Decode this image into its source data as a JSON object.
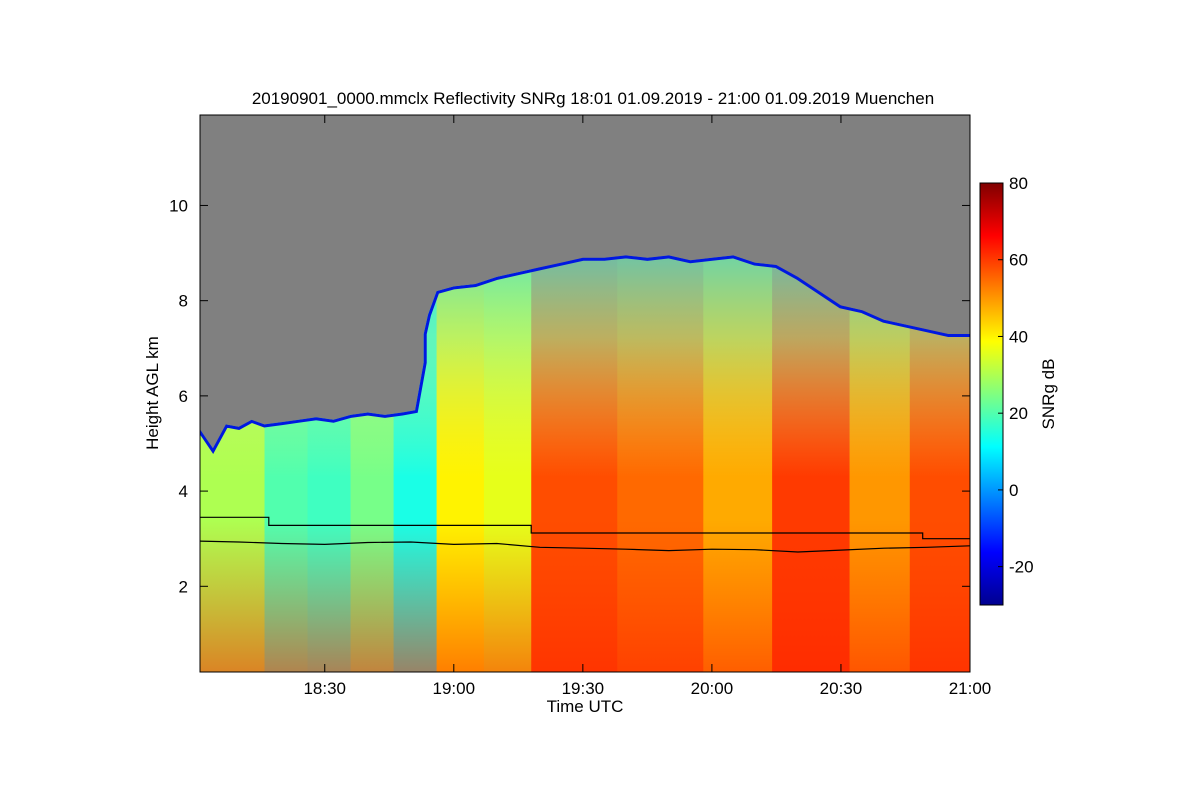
{
  "chart_data": {
    "type": "heatmap",
    "title": "20190901_0000.mmclx Reflectivity SNRg   18:01 01.09.2019 - 21:00 01.09.2019 Muenchen",
    "xlabel": "Time UTC",
    "ylabel": "Height AGL km",
    "x_range_minutes_utc": [
      1081,
      1260
    ],
    "y_range_km": [
      0.2,
      11.9
    ],
    "x_ticks": [
      {
        "minutes": 1110,
        "label": "18:30"
      },
      {
        "minutes": 1140,
        "label": "19:00"
      },
      {
        "minutes": 1170,
        "label": "19:30"
      },
      {
        "minutes": 1200,
        "label": "20:00"
      },
      {
        "minutes": 1230,
        "label": "20:30"
      },
      {
        "minutes": 1260,
        "label": "21:00"
      }
    ],
    "y_ticks": [
      {
        "km": 2,
        "label": "2"
      },
      {
        "km": 4,
        "label": "4"
      },
      {
        "km": 6,
        "label": "6"
      },
      {
        "km": 8,
        "label": "8"
      },
      {
        "km": 10,
        "label": "10"
      }
    ],
    "colorbar": {
      "label": "SNRg dB",
      "range": [
        -30,
        80
      ],
      "ticks": [
        {
          "value": -20,
          "label": "-20"
        },
        {
          "value": 0,
          "label": "0"
        },
        {
          "value": 20,
          "label": "20"
        },
        {
          "value": 40,
          "label": "40"
        },
        {
          "value": 60,
          "label": "60"
        },
        {
          "value": 80,
          "label": "80"
        }
      ],
      "colors": [
        "#00008f",
        "#0000ff",
        "#0080ff",
        "#00ffff",
        "#80ff80",
        "#ffff00",
        "#ff8000",
        "#ff0000",
        "#800000"
      ]
    },
    "no_data_color": "#808080",
    "cloud_top_km": [
      [
        1081,
        5.3
      ],
      [
        1084,
        4.9
      ],
      [
        1087,
        5.4
      ],
      [
        1090,
        5.35
      ],
      [
        1093,
        5.5
      ],
      [
        1096,
        5.4
      ],
      [
        1100,
        5.45
      ],
      [
        1104,
        5.5
      ],
      [
        1108,
        5.55
      ],
      [
        1112,
        5.5
      ],
      [
        1116,
        5.6
      ],
      [
        1120,
        5.65
      ],
      [
        1124,
        5.6
      ],
      [
        1128,
        5.65
      ],
      [
        1131,
        5.7
      ],
      [
        1132,
        6.2
      ],
      [
        1133,
        6.7
      ],
      [
        1133,
        7.3
      ],
      [
        1134,
        7.7
      ],
      [
        1136,
        8.2
      ],
      [
        1140,
        8.3
      ],
      [
        1145,
        8.35
      ],
      [
        1150,
        8.5
      ],
      [
        1155,
        8.6
      ],
      [
        1160,
        8.7
      ],
      [
        1165,
        8.8
      ],
      [
        1170,
        8.9
      ],
      [
        1175,
        8.9
      ],
      [
        1180,
        8.95
      ],
      [
        1185,
        8.9
      ],
      [
        1190,
        8.95
      ],
      [
        1195,
        8.85
      ],
      [
        1200,
        8.9
      ],
      [
        1205,
        8.95
      ],
      [
        1210,
        8.8
      ],
      [
        1215,
        8.75
      ],
      [
        1220,
        8.5
      ],
      [
        1225,
        8.2
      ],
      [
        1230,
        7.9
      ],
      [
        1235,
        7.8
      ],
      [
        1240,
        7.6
      ],
      [
        1245,
        7.5
      ],
      [
        1250,
        7.4
      ],
      [
        1255,
        7.3
      ],
      [
        1260,
        7.3
      ]
    ],
    "upper_line_km": [
      [
        1081,
        3.45
      ],
      [
        1097,
        3.45
      ],
      [
        1097,
        3.28
      ],
      [
        1158,
        3.28
      ],
      [
        1158,
        3.12
      ],
      [
        1249,
        3.12
      ],
      [
        1249,
        3.0
      ],
      [
        1260,
        3.0
      ]
    ],
    "lower_line_km": [
      [
        1081,
        2.95
      ],
      [
        1090,
        2.93
      ],
      [
        1100,
        2.9
      ],
      [
        1110,
        2.88
      ],
      [
        1120,
        2.92
      ],
      [
        1130,
        2.93
      ],
      [
        1140,
        2.88
      ],
      [
        1150,
        2.9
      ],
      [
        1160,
        2.82
      ],
      [
        1170,
        2.8
      ],
      [
        1180,
        2.78
      ],
      [
        1190,
        2.75
      ],
      [
        1200,
        2.78
      ],
      [
        1210,
        2.77
      ],
      [
        1220,
        2.72
      ],
      [
        1230,
        2.76
      ],
      [
        1240,
        2.8
      ],
      [
        1250,
        2.82
      ],
      [
        1260,
        2.85
      ]
    ],
    "snr_bands": [
      {
        "x_from": 1081,
        "x_to": 1096,
        "value": 30
      },
      {
        "x_from": 1096,
        "x_to": 1106,
        "value": 20
      },
      {
        "x_from": 1106,
        "x_to": 1116,
        "value": 18
      },
      {
        "x_from": 1116,
        "x_to": 1126,
        "value": 24
      },
      {
        "x_from": 1126,
        "x_to": 1136,
        "value": 14
      },
      {
        "x_from": 1136,
        "x_to": 1147,
        "value": 40
      },
      {
        "x_from": 1147,
        "x_to": 1158,
        "value": 36
      },
      {
        "x_from": 1158,
        "x_to": 1178,
        "value": 58
      },
      {
        "x_from": 1178,
        "x_to": 1198,
        "value": 55
      },
      {
        "x_from": 1198,
        "x_to": 1214,
        "value": 48
      },
      {
        "x_from": 1214,
        "x_to": 1232,
        "value": 60
      },
      {
        "x_from": 1232,
        "x_to": 1246,
        "value": 50
      },
      {
        "x_from": 1246,
        "x_to": 1260,
        "value": 58
      }
    ]
  }
}
